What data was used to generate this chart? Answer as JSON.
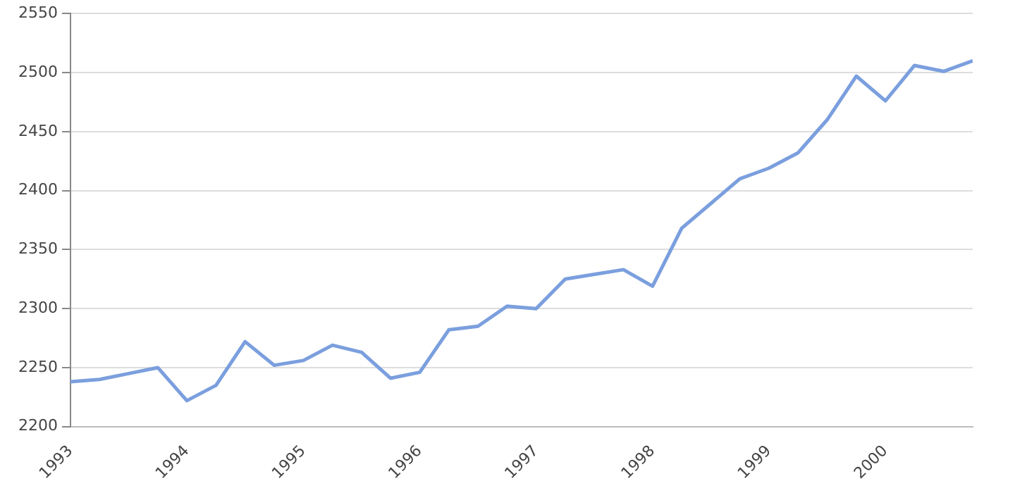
{
  "chart_data": {
    "type": "line",
    "x": [
      1993,
      1993.25,
      1993.5,
      1993.75,
      1994,
      1994.25,
      1994.5,
      1994.75,
      1995,
      1995.25,
      1995.5,
      1995.75,
      1996,
      1996.25,
      1996.5,
      1996.75,
      1997,
      1997.25,
      1997.5,
      1997.75,
      1998,
      1998.25,
      1998.5,
      1998.75,
      1999,
      1999.25,
      1999.5,
      1999.75,
      2000,
      2000.25,
      2000.5,
      2000.75
    ],
    "series": [
      {
        "color": "#7b9fde",
        "values": [
          2238,
          2240,
          2245,
          2250,
          2222,
          2235,
          2272,
          2252,
          2256,
          2269,
          2263,
          2241,
          2246,
          2282,
          2285,
          2302,
          2300,
          2325,
          2329,
          2333,
          2319,
          2368,
          2389,
          2410,
          2419,
          2432,
          2460,
          2497,
          2476,
          2506,
          2501,
          2510
        ]
      }
    ],
    "xlim": [
      1993,
      2000.75
    ],
    "xticks": [
      1993,
      1994,
      1995,
      1996,
      1997,
      1998,
      1999,
      2000
    ],
    "ylim": [
      2200,
      2550
    ],
    "yticks": [
      2200,
      2250,
      2300,
      2350,
      2400,
      2450,
      2500,
      2550
    ],
    "grid": "y",
    "legend": false,
    "marker": "none",
    "line_style": "solid"
  }
}
